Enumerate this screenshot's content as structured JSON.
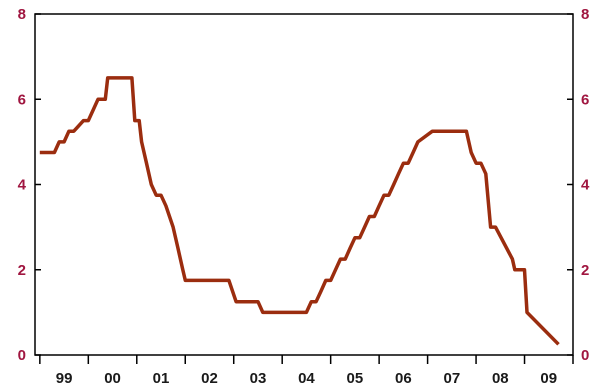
{
  "chart_data": {
    "type": "line",
    "x_tick_labels": [
      "99",
      "00",
      "01",
      "02",
      "03",
      "04",
      "05",
      "06",
      "07",
      "08",
      "09"
    ],
    "y_tick_labels": [
      "0",
      "2",
      "4",
      "6",
      "8"
    ],
    "ylim": [
      0,
      8
    ],
    "xlim": [
      1998.9,
      2010.0
    ],
    "grid": false,
    "dual_y_axis": true,
    "colors": {
      "line": "#9b2d0f",
      "y_tick_text": "#a01640",
      "x_tick_text": "#1a1a1a",
      "axis": "#000000"
    },
    "series": [
      {
        "x": [
          1999.0,
          1999.3,
          1999.4,
          1999.5,
          1999.6,
          1999.7,
          1999.9,
          2000.0,
          2000.1,
          2000.2,
          2000.35,
          2000.4,
          2000.5,
          2000.9,
          2000.96,
          2001.05,
          2001.1,
          2001.2,
          2001.3,
          2001.4,
          2001.5,
          2001.6,
          2001.75,
          2001.85,
          2001.95,
          2002.0,
          2002.1,
          2002.9,
          2003.05,
          2003.5,
          2003.6,
          2004.5,
          2004.6,
          2004.7,
          2004.8,
          2004.9,
          2005.0,
          2005.1,
          2005.2,
          2005.3,
          2005.4,
          2005.5,
          2005.6,
          2005.7,
          2005.8,
          2005.9,
          2006.0,
          2006.1,
          2006.2,
          2006.3,
          2006.4,
          2006.5,
          2006.6,
          2006.7,
          2006.8,
          2007.1,
          2007.5,
          2007.6,
          2007.7,
          2007.8,
          2007.9,
          2008.0,
          2008.1,
          2008.2,
          2008.3,
          2008.4,
          2008.75,
          2008.8,
          2008.9,
          2009.0,
          2009.05,
          2009.7
        ],
        "values": [
          4.75,
          4.75,
          5.0,
          5.0,
          5.25,
          5.25,
          5.5,
          5.5,
          5.75,
          6.0,
          6.0,
          6.5,
          6.5,
          6.5,
          5.5,
          5.5,
          5.0,
          4.5,
          4.0,
          3.75,
          3.75,
          3.5,
          3.0,
          2.5,
          2.0,
          1.75,
          1.75,
          1.75,
          1.25,
          1.25,
          1.0,
          1.0,
          1.25,
          1.25,
          1.5,
          1.75,
          1.75,
          2.0,
          2.25,
          2.25,
          2.5,
          2.75,
          2.75,
          3.0,
          3.25,
          3.25,
          3.5,
          3.75,
          3.75,
          4.0,
          4.25,
          4.5,
          4.5,
          4.75,
          5.0,
          5.25,
          5.25,
          5.25,
          5.25,
          5.25,
          4.75,
          4.5,
          4.5,
          4.25,
          3.0,
          3.0,
          2.25,
          2.0,
          2.0,
          2.0,
          1.0,
          0.25
        ]
      }
    ]
  }
}
